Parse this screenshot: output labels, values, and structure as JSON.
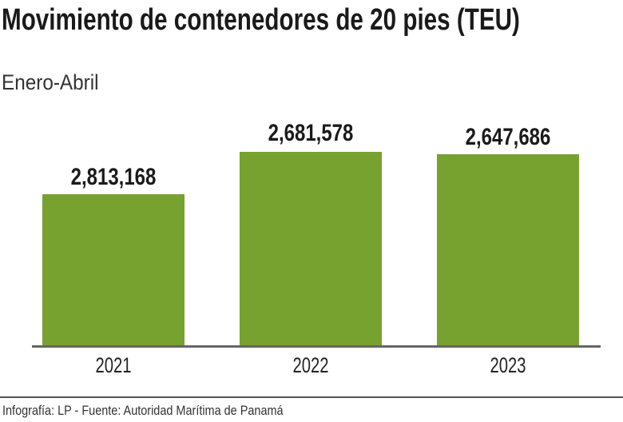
{
  "chart_data": {
    "type": "bar",
    "title": "Movimiento de contenedores de 20 pies (TEU)",
    "subtitle": "Enero-Abril",
    "categories": [
      "2021",
      "2022",
      "2023"
    ],
    "values": [
      2813168,
      2681578,
      2647686
    ],
    "data_labels": [
      "2,813,168",
      "2,681,578",
      "2,647,686"
    ],
    "xlabel": "",
    "ylabel": "",
    "grid": false,
    "bar_color": "#77a22f"
  },
  "footer": "Infografía: LP - Fuente:  Autoridad Marítima de Panamá"
}
